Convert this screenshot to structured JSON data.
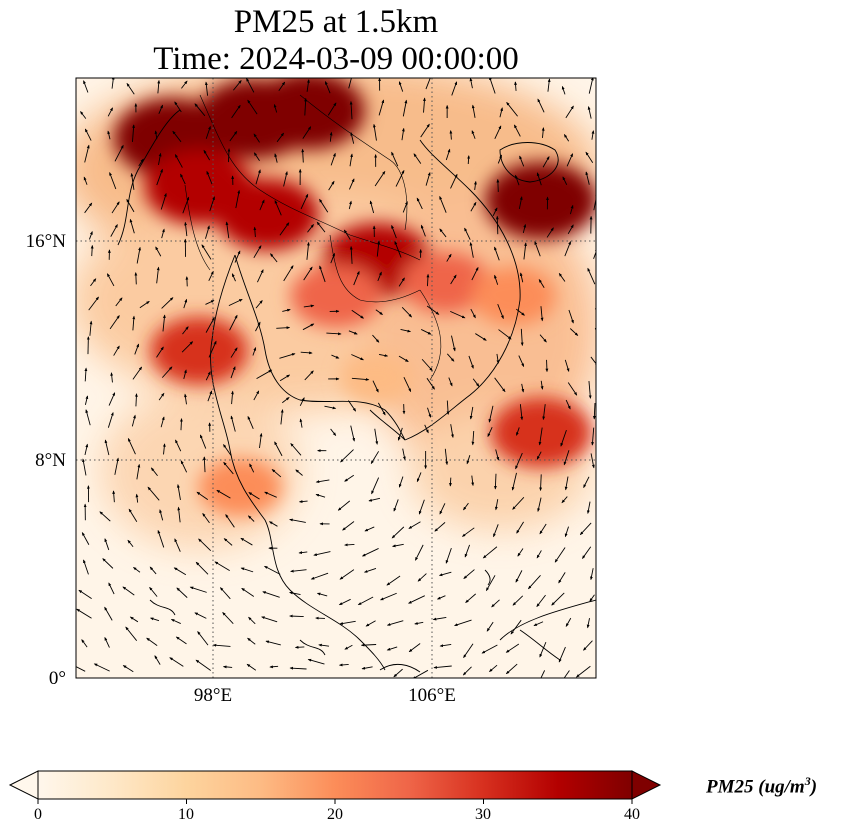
{
  "title": {
    "line1": "PM25 at 1.5km",
    "line2": "Time: 2024-03-09 00:00:00"
  },
  "map": {
    "projection": "PlateCarree",
    "lon_range": [
      93,
      112
    ],
    "lat_range": [
      0,
      22
    ],
    "grid": true,
    "lat_ticks": [
      "0°",
      "8°N",
      "16°N"
    ],
    "lon_ticks": [
      "98°E",
      "106°E"
    ],
    "field": "PM25",
    "hotspots_ug_m3": [
      {
        "lon": 96.5,
        "lat": 19.8,
        "value": 40
      },
      {
        "lon": 99.5,
        "lat": 20.5,
        "value": 40
      },
      {
        "lon": 101.5,
        "lat": 20.8,
        "value": 38
      },
      {
        "lon": 97.5,
        "lat": 18.0,
        "value": 36
      },
      {
        "lon": 100.0,
        "lat": 17.0,
        "value": 33
      },
      {
        "lon": 104.0,
        "lat": 15.3,
        "value": 36
      },
      {
        "lon": 110.0,
        "lat": 17.5,
        "value": 38
      },
      {
        "lon": 102.5,
        "lat": 14.0,
        "value": 26
      },
      {
        "lon": 106.5,
        "lat": 14.5,
        "value": 24
      },
      {
        "lon": 109.0,
        "lat": 14.0,
        "value": 22
      },
      {
        "lon": 97.5,
        "lat": 12.0,
        "value": 30
      },
      {
        "lon": 110.0,
        "lat": 9.0,
        "value": 32
      },
      {
        "lon": 99.0,
        "lat": 7.0,
        "value": 22
      },
      {
        "lon": 104.0,
        "lat": 11.0,
        "value": 16
      }
    ],
    "wind_vectors": "quiver arrows"
  },
  "colorbar": {
    "cmap": "OrRd",
    "min": 0,
    "max": 40,
    "extend": "both",
    "ticks": [
      "0",
      "10",
      "20",
      "30",
      "40"
    ],
    "label_main": "PM25 (ug/m",
    "label_sup": "3",
    "label_close": ")",
    "colors": [
      "#fff7ec",
      "#fee8c8",
      "#fdd49e",
      "#fdbb84",
      "#fc8d59",
      "#ef6548",
      "#d7301f",
      "#b30000",
      "#7f0000"
    ]
  }
}
